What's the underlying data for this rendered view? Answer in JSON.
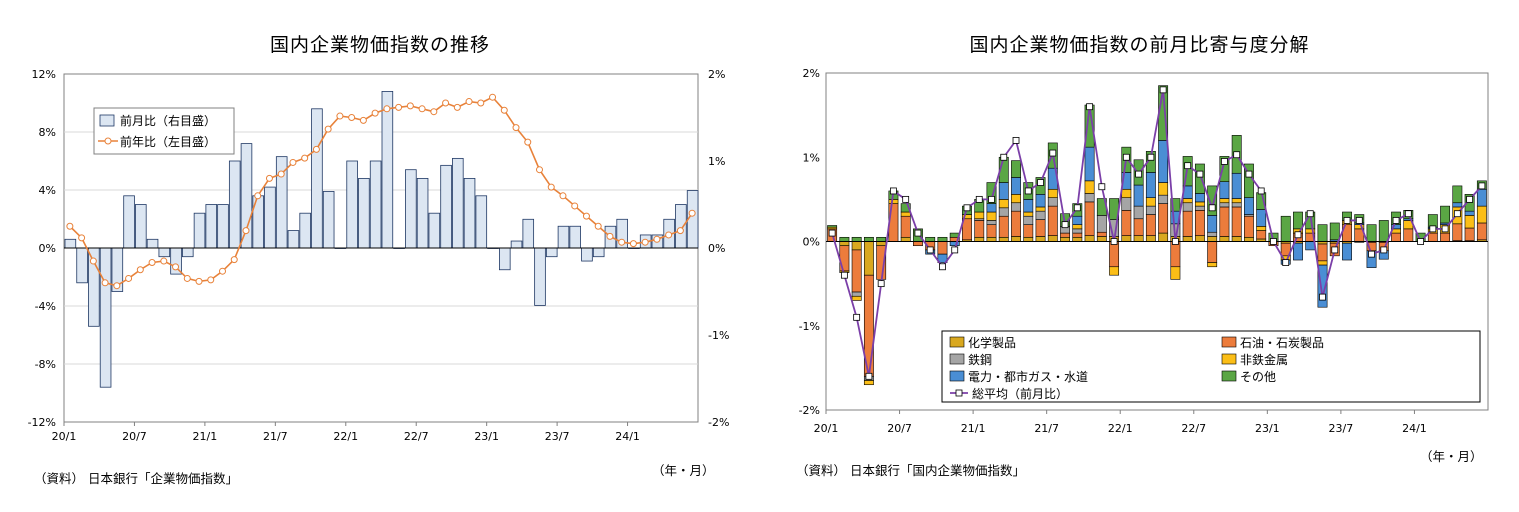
{
  "left_chart": {
    "title": "国内企業物価指数の推移",
    "source": "（資料） 日本銀行「企業物価指数」",
    "unit": "（年・月）",
    "chart_data": {
      "type": "bar+line",
      "title": "国内企業物価指数の推移",
      "x_tick_labels": [
        "20/1",
        "20/7",
        "21/1",
        "21/7",
        "22/1",
        "22/7",
        "23/1",
        "23/7",
        "24/1"
      ],
      "y_left": {
        "ticks": [
          "12%",
          "8%",
          "4%",
          "0%",
          "-4%",
          "-8%",
          "-12%"
        ],
        "range": [
          -12,
          12
        ]
      },
      "y_right": {
        "ticks": [
          "2%",
          "1%",
          "0%",
          "-1%",
          "-2%"
        ],
        "range": [
          -2,
          2
        ]
      },
      "legend": [
        "前月比（右目盛）",
        "前年比（左目盛）"
      ],
      "legend_placement": "top-left",
      "grid": true,
      "series": [
        {
          "name": "前月比（右目盛）",
          "type": "bar",
          "axis": "right",
          "color": "#dce6f2",
          "values": [
            0.1,
            -0.4,
            -0.9,
            -1.6,
            -0.5,
            0.6,
            0.5,
            0.1,
            -0.1,
            -0.3,
            -0.1,
            0.4,
            0.5,
            0.5,
            1.0,
            1.2,
            0.6,
            0.7,
            1.05,
            0.2,
            0.4,
            1.6,
            0.65,
            0,
            1.0,
            0.8,
            1.0,
            1.8,
            0,
            0.9,
            0.8,
            0.4,
            0.95,
            1.03,
            0.8,
            0.6,
            0,
            -0.25,
            0.08,
            0.33,
            -0.66,
            -0.1,
            0.25,
            0.25,
            -0.15,
            -0.1,
            0.25,
            0.33,
            0,
            0.15,
            0.15,
            0.33,
            0.5,
            0.66
          ]
        },
        {
          "name": "前年比（左目盛）",
          "type": "line",
          "axis": "left",
          "color": "#e8823a",
          "values": [
            1.5,
            0.7,
            -0.9,
            -2.4,
            -2.6,
            -2.1,
            -1.5,
            -1.0,
            -0.9,
            -1.3,
            -2.1,
            -2.3,
            -2.2,
            -1.6,
            -0.8,
            1.2,
            3.6,
            4.8,
            5.1,
            5.9,
            6.2,
            6.8,
            8.2,
            9.1,
            9.0,
            8.8,
            9.3,
            9.6,
            9.7,
            9.8,
            9.6,
            9.4,
            10.0,
            9.7,
            10.1,
            10.0,
            10.4,
            9.5,
            8.3,
            7.3,
            5.4,
            4.2,
            3.6,
            2.9,
            2.2,
            1.5,
            0.8,
            0.4,
            0.3,
            0.4,
            0.6,
            0.9,
            1.2,
            2.4
          ]
        }
      ]
    }
  },
  "right_chart": {
    "title": "国内企業物価指数の前月比寄与度分解",
    "source": "（資料） 日本銀行「国内企業物価指数」",
    "unit": "（年・月）",
    "chart_data": {
      "type": "stacked-bar+line",
      "title": "国内企業物価指数の前月比寄与度分解",
      "x_tick_labels": [
        "20/1",
        "20/7",
        "21/1",
        "21/7",
        "22/1",
        "22/7",
        "23/1",
        "23/7",
        "24/1"
      ],
      "y": {
        "ticks": [
          "2%",
          "1%",
          "0%",
          "-1%",
          "-2%"
        ],
        "range": [
          -2,
          2
        ]
      },
      "legend_placement": "bottom-right inside",
      "grid": false,
      "series": [
        {
          "name": "化学製品",
          "type": "bar",
          "color": "#d9a81f",
          "values": [
            0,
            -0.05,
            -0.1,
            -0.4,
            -0.05,
            0,
            0.05,
            0,
            0,
            0,
            0,
            0.02,
            0.05,
            0.05,
            0.05,
            0.06,
            0.05,
            0.06,
            0.07,
            0.05,
            0.05,
            0.07,
            0.06,
            0.06,
            0.07,
            0.07,
            0.07,
            0.1,
            0.06,
            0.06,
            0.07,
            0.06,
            0.06,
            0.06,
            0.05,
            0.03,
            0,
            -0.02,
            -0.02,
            0,
            -0.03,
            -0.02,
            -0.02,
            -0.01,
            -0.01,
            -0.01,
            0,
            0,
            0,
            0,
            0,
            0.01,
            0.01,
            0.02
          ]
        },
        {
          "name": "石油・石炭製品",
          "type": "bar",
          "color": "#ec7c3c",
          "values": [
            0.15,
            -0.3,
            -0.5,
            -1.2,
            -0.4,
            0.45,
            0.25,
            -0.05,
            -0.1,
            -0.15,
            0.05,
            0.25,
            0.2,
            0.15,
            0.25,
            0.3,
            0.15,
            0.2,
            0.35,
            0.05,
            0.05,
            0.4,
            0.05,
            -0.3,
            0.3,
            0.2,
            0.25,
            0.35,
            -0.3,
            0.3,
            0.3,
            -0.25,
            0.35,
            0.35,
            0.25,
            0.1,
            -0.05,
            -0.15,
            0.1,
            0.1,
            -0.2,
            -0.15,
            0.2,
            0.15,
            -0.1,
            -0.1,
            0.1,
            0.15,
            0,
            0.1,
            0.1,
            0.2,
            0.15,
            0.2
          ]
        },
        {
          "name": "鉄鋼",
          "type": "bar",
          "color": "#a5a5a5",
          "values": [
            0,
            0,
            -0.05,
            -0.05,
            0,
            0,
            0,
            0,
            0,
            0,
            0,
            0,
            0.02,
            0.05,
            0.1,
            0.1,
            0.1,
            0.1,
            0.1,
            0.08,
            0.05,
            0.1,
            0.2,
            0.2,
            0.15,
            0.15,
            0.1,
            0.1,
            0.15,
            0.1,
            0.05,
            0.05,
            0.05,
            0.05,
            0.02,
            0,
            0,
            0,
            0,
            0,
            0,
            0,
            0,
            0,
            0,
            0,
            0,
            0,
            0,
            0,
            0,
            0,
            0,
            0
          ]
        },
        {
          "name": "非鉄金属",
          "type": "bar",
          "color": "#fbbe17",
          "values": [
            0.02,
            -0.02,
            -0.05,
            -0.05,
            0,
            0.05,
            0.05,
            0,
            0,
            0,
            0,
            0.05,
            0.08,
            0.1,
            0.1,
            0.1,
            0.05,
            0.05,
            0.1,
            0,
            0.05,
            0.15,
            0,
            -0.1,
            0.1,
            0,
            0.1,
            0.15,
            -0.15,
            0.05,
            0.05,
            -0.05,
            0.05,
            0.05,
            0,
            0.05,
            0,
            -0.05,
            0.05,
            0.05,
            -0.05,
            0,
            0.05,
            0.05,
            0,
            0,
            0.05,
            0.1,
            0,
            0.05,
            0.1,
            0.2,
            0.15,
            0.2
          ]
        },
        {
          "name": "電力・都市ガス・水道",
          "type": "bar",
          "color": "#4a8ed4",
          "values": [
            0,
            0,
            0,
            0,
            0,
            0,
            0,
            0,
            -0.05,
            -0.1,
            -0.05,
            0,
            0,
            0.1,
            0.2,
            0.2,
            0.15,
            0.15,
            0.25,
            0,
            0.1,
            0.4,
            0,
            0,
            0.2,
            0.25,
            0.3,
            0.5,
            0.15,
            0.15,
            0.1,
            0.2,
            0.2,
            0.3,
            0.2,
            0.2,
            0,
            -0.05,
            -0.2,
            -0.1,
            -0.5,
            0.02,
            -0.2,
            0.02,
            -0.2,
            -0.1,
            0.05,
            0.02,
            0,
            0.02,
            0.02,
            0.05,
            0.05,
            0.2
          ]
        },
        {
          "name": "その他",
          "type": "bar",
          "color": "#5aa644",
          "values": [
            0.02,
            0.05,
            0.05,
            0.05,
            0.05,
            0.1,
            0.1,
            0.15,
            0.05,
            0.05,
            0.05,
            0.1,
            0.15,
            0.25,
            0.3,
            0.2,
            0.2,
            0.2,
            0.3,
            0.15,
            0.15,
            0.5,
            0.2,
            0.25,
            0.3,
            0.3,
            0.25,
            0.65,
            0.15,
            0.35,
            0.35,
            0.35,
            0.3,
            0.45,
            0.4,
            0.2,
            0.1,
            0.3,
            0.2,
            0.2,
            0.2,
            0.2,
            0.1,
            0.1,
            0.2,
            0.25,
            0.15,
            0.1,
            0.1,
            0.15,
            0.2,
            0.2,
            0.2,
            0.1
          ]
        },
        {
          "name": "総平均（前月比）",
          "type": "line",
          "color": "#7b3fa8",
          "values": [
            0.1,
            -0.4,
            -0.9,
            -1.6,
            -0.5,
            0.6,
            0.5,
            0.1,
            -0.1,
            -0.3,
            -0.1,
            0.4,
            0.5,
            0.5,
            1.0,
            1.2,
            0.6,
            0.7,
            1.05,
            0.2,
            0.4,
            1.6,
            0.65,
            0,
            1.0,
            0.8,
            1.0,
            1.8,
            0,
            0.9,
            0.8,
            0.4,
            0.95,
            1.03,
            0.8,
            0.6,
            0,
            -0.25,
            0.08,
            0.33,
            -0.66,
            -0.1,
            0.25,
            0.25,
            -0.15,
            -0.1,
            0.25,
            0.33,
            0,
            0.15,
            0.15,
            0.33,
            0.5,
            0.66
          ]
        }
      ]
    }
  }
}
